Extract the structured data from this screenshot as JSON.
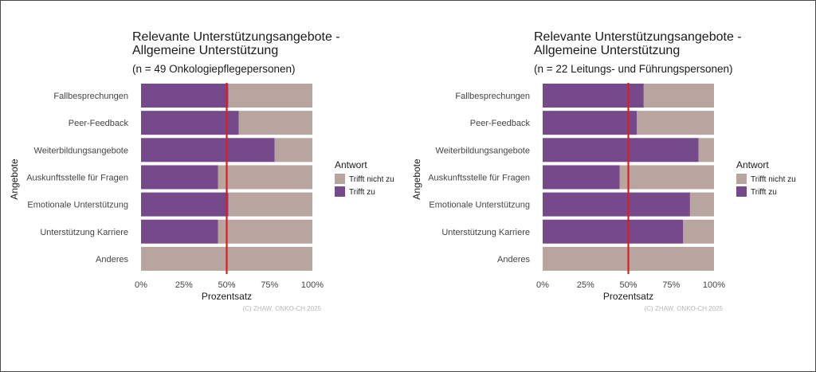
{
  "chart_data": [
    {
      "type": "bar",
      "orientation": "horizontal",
      "stacked": true,
      "title": "Relevante Unterstützungsangebote -\nAllgemeine Unterstützung",
      "subtitle": "(n = 49 Onkologiepflegepersonen)",
      "xlabel": "Prozentsatz",
      "ylabel": "Angebote",
      "xlim": [
        0,
        100
      ],
      "x_ticks": [
        "0%",
        "25%",
        "50%",
        "75%",
        "100%"
      ],
      "categories": [
        "Fallbesprechungen",
        "Peer-Feedback",
        "Weiterbildungsangebote",
        "Auskunftsstelle für Fragen",
        "Emotionale Unterstützung",
        "Unterstützung Karriere",
        "Anderes"
      ],
      "series": [
        {
          "name": "Trifft zu",
          "color": "#75498a",
          "values": [
            51,
            57,
            78,
            45,
            51,
            45,
            0
          ]
        },
        {
          "name": "Trifft nicht zu",
          "color": "#b8a59f",
          "values": [
            49,
            43,
            22,
            55,
            49,
            55,
            100
          ]
        }
      ],
      "reference_line": {
        "value": 50,
        "color": "#e31a1c"
      },
      "legend": {
        "title": "Antwort",
        "items": [
          "Trifft nicht zu",
          "Trifft zu"
        ],
        "position": "right"
      },
      "caption": "(C) ZHAW, ONKO-CH 2025",
      "grid": false
    },
    {
      "type": "bar",
      "orientation": "horizontal",
      "stacked": true,
      "title": "Relevante Unterstützungsangebote -\nAllgemeine Unterstützung",
      "subtitle": "(n = 22 Leitungs- und Führungspersonen)",
      "xlabel": "Prozentsatz",
      "ylabel": "Angebote",
      "xlim": [
        0,
        100
      ],
      "x_ticks": [
        "0%",
        "25%",
        "50%",
        "75%",
        "100%"
      ],
      "categories": [
        "Fallbesprechungen",
        "Peer-Feedback",
        "Weiterbildungsangebote",
        "Auskunftsstelle für Fragen",
        "Emotionale Unterstützung",
        "Unterstützung Karriere",
        "Anderes"
      ],
      "series": [
        {
          "name": "Trifft zu",
          "color": "#75498a",
          "values": [
            59,
            55,
            91,
            45,
            86,
            82,
            0
          ]
        },
        {
          "name": "Trifft nicht zu",
          "color": "#b8a59f",
          "values": [
            41,
            45,
            9,
            55,
            14,
            18,
            100
          ]
        }
      ],
      "reference_line": {
        "value": 50,
        "color": "#e31a1c"
      },
      "legend": {
        "title": "Antwort",
        "items": [
          "Trifft nicht zu",
          "Trifft zu"
        ],
        "position": "right"
      },
      "caption": "(C) ZHAW, ONKO-CH 2025",
      "grid": false
    }
  ]
}
